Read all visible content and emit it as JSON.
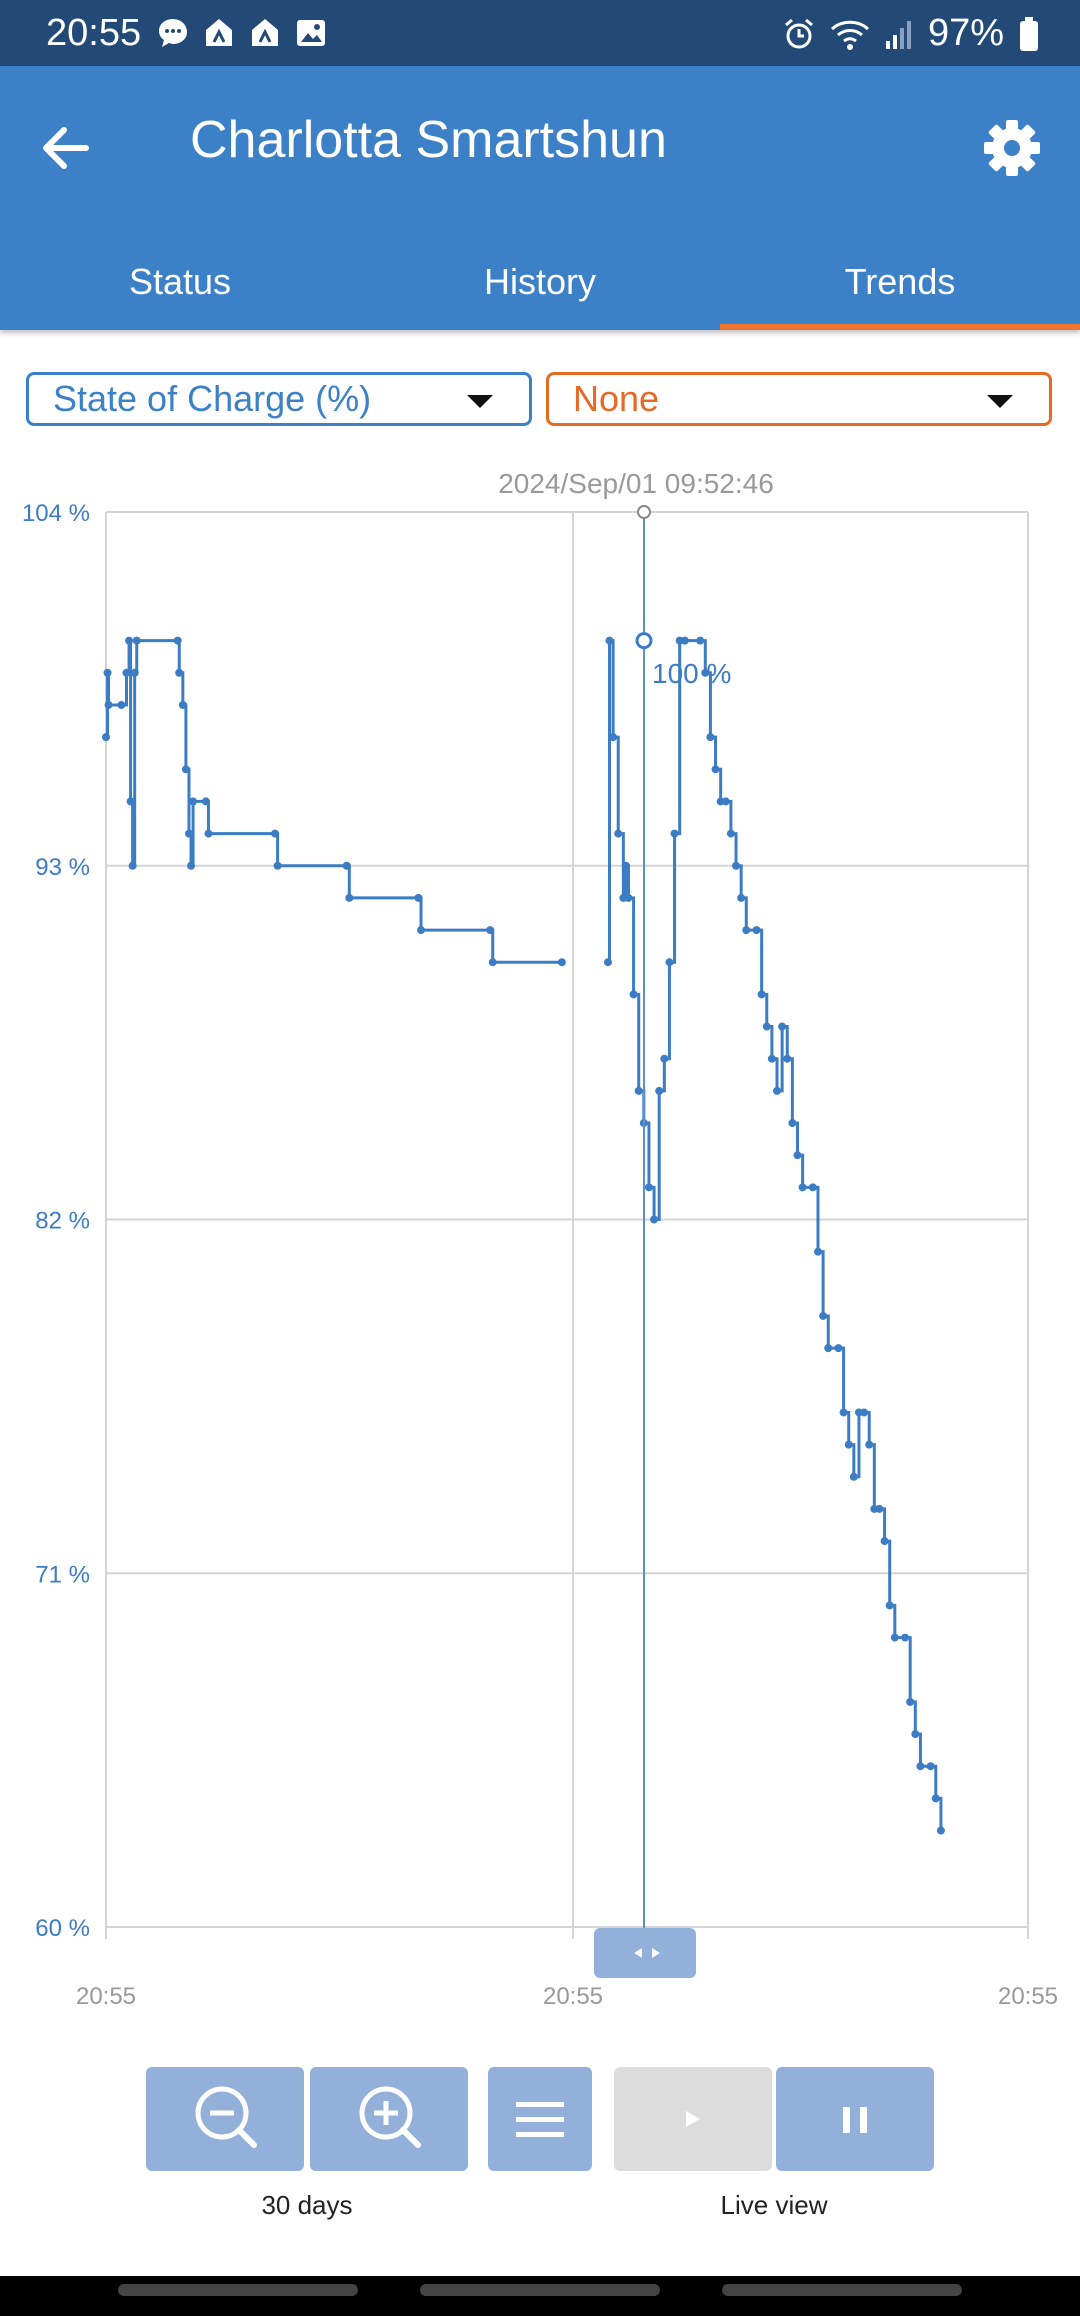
{
  "status_bar": {
    "time": "20:55",
    "battery": "97%",
    "notification_icons": [
      "chat-icon",
      "app-icon",
      "app-icon",
      "image-icon"
    ],
    "system_icons": [
      "alarm-icon",
      "wifi-icon",
      "signal-icon",
      "battery-icon"
    ]
  },
  "app_bar": {
    "title": "Charlotta Smartshun",
    "tabs": [
      {
        "label": "Status",
        "active": false
      },
      {
        "label": "History",
        "active": false
      },
      {
        "label": "Trends",
        "active": true
      }
    ]
  },
  "selectors": {
    "primary": "State of Charge (%)",
    "secondary": "None"
  },
  "chart_data": {
    "type": "line",
    "title": "",
    "ylabel": "",
    "xlabel": "",
    "ylim": [
      60,
      104
    ],
    "y_ticks": [
      "104 %",
      "93 %",
      "82 %",
      "71 %",
      "60 %"
    ],
    "x_ticks": [
      "20:55",
      "20:55",
      "20:55"
    ],
    "cursor_timestamp": "2024/Sep/01 09:52:46",
    "cursor_value_label": "100 %",
    "series_color": "#3c7cc4",
    "series": [
      {
        "segments": [
          [
            [
              0,
              97
            ],
            [
              0.3,
              99
            ],
            [
              0.5,
              98
            ],
            [
              3,
              98
            ],
            [
              4,
              99
            ],
            [
              4.5,
              100
            ],
            [
              4.8,
              95
            ],
            [
              5.2,
              93
            ],
            [
              5.6,
              99
            ],
            [
              6,
              100
            ],
            [
              14,
              100
            ],
            [
              14.3,
              99
            ],
            [
              15,
              98
            ],
            [
              15.6,
              96
            ],
            [
              16.2,
              94
            ],
            [
              16.6,
              93
            ],
            [
              17,
              95
            ],
            [
              19.5,
              95
            ],
            [
              20,
              94
            ],
            [
              33,
              94
            ],
            [
              33.5,
              93
            ],
            [
              47,
              93
            ],
            [
              47.5,
              92
            ],
            [
              61,
              92
            ],
            [
              61.5,
              91
            ],
            [
              75,
              91
            ],
            [
              75.5,
              90
            ],
            [
              89,
              90
            ]
          ],
          [
            [
              98,
              90
            ],
            [
              98.3,
              100
            ],
            [
              99,
              97
            ],
            [
              100,
              94
            ],
            [
              101,
              92
            ],
            [
              101.5,
              93
            ],
            [
              102,
              92
            ],
            [
              103,
              89
            ],
            [
              104,
              86
            ],
            [
              105,
              85
            ],
            [
              106,
              83
            ],
            [
              107,
              82
            ],
            [
              108,
              86
            ],
            [
              109,
              87
            ],
            [
              110,
              90
            ],
            [
              111,
              94
            ],
            [
              112,
              100
            ],
            [
              113,
              100
            ],
            [
              116,
              100
            ],
            [
              117,
              99
            ],
            [
              118,
              97
            ],
            [
              119,
              96
            ],
            [
              120,
              95
            ],
            [
              121,
              95
            ],
            [
              122,
              94
            ],
            [
              123,
              93
            ],
            [
              124,
              92
            ],
            [
              125,
              91
            ],
            [
              127,
              91
            ],
            [
              128,
              89
            ],
            [
              129,
              88
            ],
            [
              130,
              87
            ],
            [
              131,
              86
            ],
            [
              132,
              88
            ],
            [
              133,
              87
            ],
            [
              134,
              85
            ],
            [
              135,
              84
            ],
            [
              136,
              83
            ],
            [
              138,
              83
            ],
            [
              139,
              81
            ],
            [
              140,
              79
            ],
            [
              141,
              78
            ],
            [
              143,
              78
            ],
            [
              144,
              76
            ],
            [
              145,
              75
            ],
            [
              146,
              74
            ],
            [
              147,
              76
            ],
            [
              148,
              76
            ],
            [
              149,
              75
            ],
            [
              150,
              73
            ],
            [
              151,
              73
            ],
            [
              152,
              72
            ],
            [
              153,
              70
            ],
            [
              154,
              69
            ],
            [
              156,
              69
            ],
            [
              157,
              67
            ],
            [
              158,
              66
            ],
            [
              159,
              65
            ],
            [
              161,
              65
            ],
            [
              162,
              64
            ],
            [
              163,
              63
            ]
          ]
        ]
      }
    ]
  },
  "controls": {
    "zoom_caption": "30 days",
    "live_caption": "Live view",
    "buttons": [
      "zoom-out-icon",
      "zoom-in-icon",
      "menu-icon",
      "play-icon",
      "pause-icon"
    ]
  }
}
